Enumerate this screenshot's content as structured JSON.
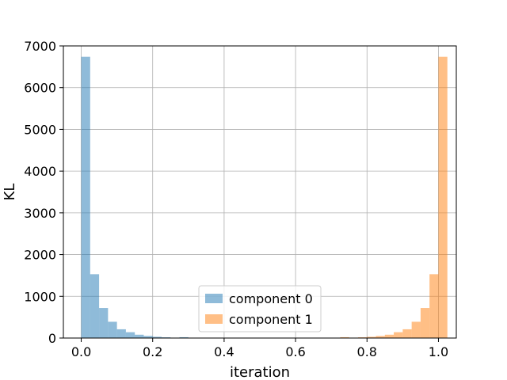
{
  "chart_data": {
    "type": "bar",
    "title": "",
    "xlabel": "iteration",
    "ylabel": "KL",
    "xlim": [
      -0.05,
      1.05
    ],
    "ylim": [
      0,
      7000
    ],
    "grid": true,
    "legend_position": "bottom-center",
    "x_ticks": [
      0.0,
      0.2,
      0.4,
      0.6,
      0.8,
      1.0
    ],
    "x_tick_labels": [
      "0.0",
      "0.2",
      "0.4",
      "0.6",
      "0.8",
      "1.0"
    ],
    "y_ticks": [
      0,
      1000,
      2000,
      3000,
      4000,
      5000,
      6000,
      7000
    ],
    "y_tick_labels": [
      "0",
      "1000",
      "2000",
      "3000",
      "4000",
      "5000",
      "6000",
      "7000"
    ],
    "bin_width": 0.025,
    "series": [
      {
        "name": "component 0",
        "color": "#1f77b4",
        "opacity": 0.5,
        "bins": [
          {
            "x0": 0.0,
            "count": 6740
          },
          {
            "x0": 0.025,
            "count": 1530
          },
          {
            "x0": 0.05,
            "count": 720
          },
          {
            "x0": 0.075,
            "count": 390
          },
          {
            "x0": 0.1,
            "count": 210
          },
          {
            "x0": 0.125,
            "count": 140
          },
          {
            "x0": 0.15,
            "count": 80
          },
          {
            "x0": 0.175,
            "count": 50
          },
          {
            "x0": 0.2,
            "count": 30
          },
          {
            "x0": 0.225,
            "count": 18
          },
          {
            "x0": 0.25,
            "count": 10
          },
          {
            "x0": 0.275,
            "count": 20
          },
          {
            "x0": 0.3,
            "count": 5
          }
        ]
      },
      {
        "name": "component 1",
        "color": "#ff7f0e",
        "opacity": 0.5,
        "bins": [
          {
            "x0": 0.7,
            "count": 5
          },
          {
            "x0": 0.725,
            "count": 20
          },
          {
            "x0": 0.75,
            "count": 10
          },
          {
            "x0": 0.775,
            "count": 18
          },
          {
            "x0": 0.8,
            "count": 30
          },
          {
            "x0": 0.825,
            "count": 50
          },
          {
            "x0": 0.85,
            "count": 80
          },
          {
            "x0": 0.875,
            "count": 140
          },
          {
            "x0": 0.9,
            "count": 210
          },
          {
            "x0": 0.925,
            "count": 390
          },
          {
            "x0": 0.95,
            "count": 720
          },
          {
            "x0": 0.975,
            "count": 1530
          },
          {
            "x0": 1.0,
            "count": 6740
          }
        ]
      }
    ]
  }
}
